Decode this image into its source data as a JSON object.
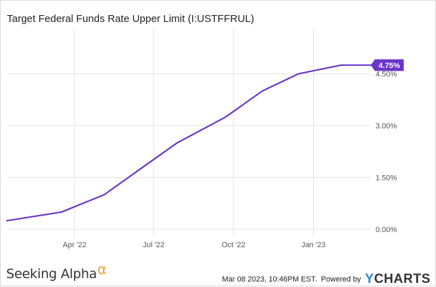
{
  "chart_data": {
    "type": "line",
    "title": "Target Federal Funds Rate Upper Limit (I:USTFFRUL)",
    "xlabel": "",
    "ylabel": "",
    "x_tick_labels": [
      "Apr '22",
      "Jul '22",
      "Oct '22",
      "Jan '23"
    ],
    "x_ticks": [
      "2022-04-01",
      "2022-07-01",
      "2022-10-01",
      "2023-01-01"
    ],
    "y_tick_labels": [
      "0.00%",
      "1.50%",
      "3.00%",
      "4.50%"
    ],
    "y_ticks": [
      0,
      1.5,
      3,
      4.5
    ],
    "xlim": [
      "2022-01-13",
      "2023-03-08"
    ],
    "ylim": [
      -0.2,
      5.8
    ],
    "grid": true,
    "series": [
      {
        "name": "",
        "color": "#6a35c8",
        "x": [
          "2022-01-13",
          "2022-03-17",
          "2022-05-05",
          "2022-06-16",
          "2022-07-28",
          "2022-09-22",
          "2022-11-03",
          "2022-12-15",
          "2023-02-02",
          "2023-03-08"
        ],
        "values": [
          0.25,
          0.5,
          1.0,
          1.75,
          2.5,
          3.25,
          4.0,
          4.5,
          4.75,
          4.75
        ]
      }
    ],
    "last_value_label": "4.75%"
  },
  "footer": {
    "brand": "Seeking Alpha",
    "brand_symbol": "α",
    "timestamp": "Mar 08 2023, 10:46PM EST.",
    "powered_by": "Powered by",
    "ycharts_y": "Y",
    "ycharts_rest": "CHARTS"
  }
}
